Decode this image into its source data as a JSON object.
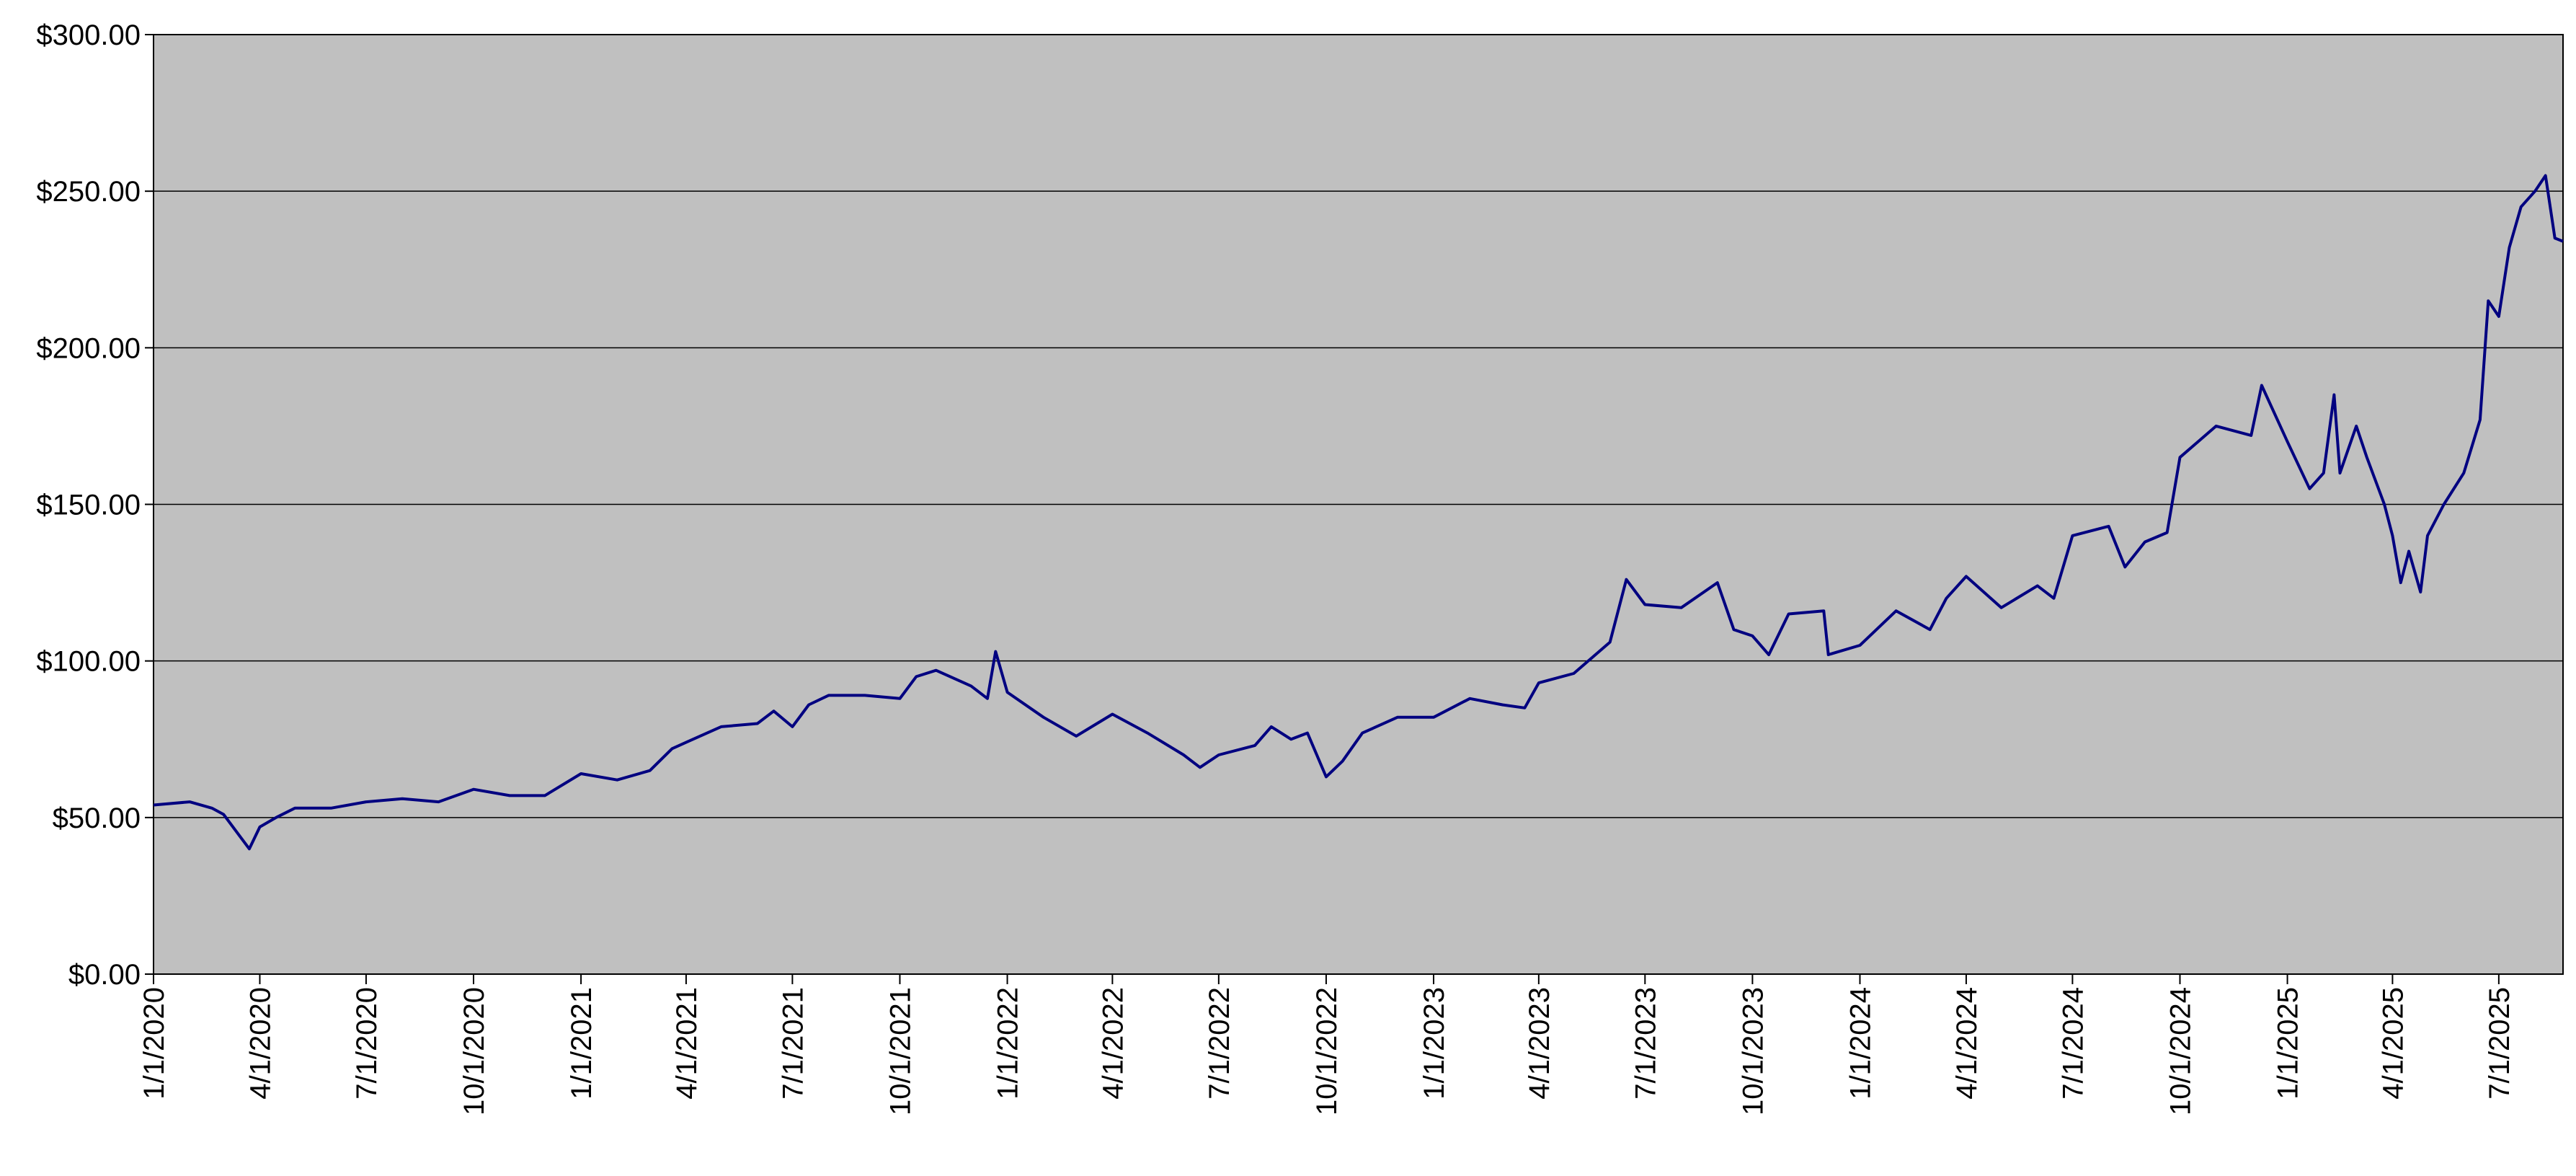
{
  "chart_data": {
    "type": "line",
    "color": "#000080",
    "background": "#c0c0c0",
    "grid": true,
    "x": [
      "2020-01-01",
      "2020-02-01",
      "2020-02-20",
      "2020-03-01",
      "2020-03-15",
      "2020-03-23",
      "2020-04-01",
      "2020-04-15",
      "2020-05-01",
      "2020-06-01",
      "2020-07-01",
      "2020-08-01",
      "2020-09-01",
      "2020-10-01",
      "2020-11-01",
      "2020-12-01",
      "2021-01-01",
      "2021-02-01",
      "2021-03-01",
      "2021-03-20",
      "2021-04-01",
      "2021-05-01",
      "2021-06-01",
      "2021-06-15",
      "2021-07-01",
      "2021-07-15",
      "2021-08-01",
      "2021-09-01",
      "2021-10-01",
      "2021-10-15",
      "2021-11-01",
      "2021-12-01",
      "2021-12-15",
      "2021-12-22",
      "2022-01-01",
      "2022-02-01",
      "2022-03-01",
      "2022-04-01",
      "2022-05-01",
      "2022-06-01",
      "2022-06-15",
      "2022-07-01",
      "2022-08-01",
      "2022-08-15",
      "2022-09-01",
      "2022-09-15",
      "2022-10-01",
      "2022-10-15",
      "2022-11-01",
      "2022-12-01",
      "2023-01-01",
      "2023-02-01",
      "2023-03-01",
      "2023-03-20",
      "2023-04-01",
      "2023-05-01",
      "2023-06-01",
      "2023-06-15",
      "2023-07-01",
      "2023-08-01",
      "2023-09-01",
      "2023-09-15",
      "2023-10-01",
      "2023-10-15",
      "2023-11-01",
      "2023-12-01",
      "2023-12-05",
      "2024-01-01",
      "2024-02-01",
      "2024-03-01",
      "2024-03-15",
      "2024-04-01",
      "2024-05-01",
      "2024-06-01",
      "2024-06-15",
      "2024-07-01",
      "2024-08-01",
      "2024-08-15",
      "2024-09-01",
      "2024-09-20",
      "2024-10-01",
      "2024-11-01",
      "2024-12-01",
      "2024-12-10",
      "2025-01-01",
      "2025-01-20",
      "2025-02-01",
      "2025-02-10",
      "2025-02-15",
      "2025-03-01",
      "2025-03-10",
      "2025-03-25",
      "2025-04-01",
      "2025-04-08",
      "2025-04-15",
      "2025-04-25",
      "2025-05-01",
      "2025-05-15",
      "2025-06-01",
      "2025-06-15",
      "2025-06-22",
      "2025-07-01",
      "2025-07-10",
      "2025-07-20",
      "2025-08-01",
      "2025-08-10",
      "2025-08-18",
      "2025-08-25"
    ],
    "values": [
      54,
      55,
      53,
      51,
      44,
      40,
      47,
      50,
      53,
      53,
      55,
      56,
      55,
      59,
      57,
      57,
      64,
      62,
      65,
      72,
      74,
      79,
      80,
      84,
      79,
      86,
      89,
      89,
      88,
      95,
      97,
      92,
      88,
      103,
      90,
      82,
      76,
      83,
      77,
      70,
      66,
      70,
      73,
      79,
      75,
      77,
      63,
      68,
      77,
      82,
      82,
      88,
      86,
      85,
      93,
      96,
      106,
      126,
      118,
      117,
      125,
      110,
      108,
      102,
      115,
      116,
      102,
      105,
      116,
      110,
      120,
      127,
      117,
      124,
      120,
      140,
      143,
      130,
      138,
      141,
      165,
      175,
      172,
      188,
      170,
      155,
      160,
      185,
      160,
      175,
      165,
      150,
      140,
      125,
      135,
      122,
      140,
      150,
      160,
      177,
      215,
      210,
      232,
      245,
      250,
      255,
      235,
      234
    ],
    "xlim": [
      "2020-01-01",
      "2025-08-25"
    ],
    "xticks": [
      {
        "value": "2020-01-01",
        "label": "1/1/2020"
      },
      {
        "value": "2020-04-01",
        "label": "4/1/2020"
      },
      {
        "value": "2020-07-01",
        "label": "7/1/2020"
      },
      {
        "value": "2020-10-01",
        "label": "10/1/2020"
      },
      {
        "value": "2021-01-01",
        "label": "1/1/2021"
      },
      {
        "value": "2021-04-01",
        "label": "4/1/2021"
      },
      {
        "value": "2021-07-01",
        "label": "7/1/2021"
      },
      {
        "value": "2021-10-01",
        "label": "10/1/2021"
      },
      {
        "value": "2022-01-01",
        "label": "1/1/2022"
      },
      {
        "value": "2022-04-01",
        "label": "4/1/2022"
      },
      {
        "value": "2022-07-01",
        "label": "7/1/2022"
      },
      {
        "value": "2022-10-01",
        "label": "10/1/2022"
      },
      {
        "value": "2023-01-01",
        "label": "1/1/2023"
      },
      {
        "value": "2023-04-01",
        "label": "4/1/2023"
      },
      {
        "value": "2023-07-01",
        "label": "7/1/2023"
      },
      {
        "value": "2023-10-01",
        "label": "10/1/2023"
      },
      {
        "value": "2024-01-01",
        "label": "1/1/2024"
      },
      {
        "value": "2024-04-01",
        "label": "4/1/2024"
      },
      {
        "value": "2024-07-01",
        "label": "7/1/2024"
      },
      {
        "value": "2024-10-01",
        "label": "10/1/2024"
      },
      {
        "value": "2025-01-01",
        "label": "1/1/2025"
      },
      {
        "value": "2025-04-01",
        "label": "4/1/2025"
      },
      {
        "value": "2025-07-01",
        "label": "7/1/2025"
      }
    ],
    "ylim": [
      0,
      300
    ],
    "yticks": [
      {
        "value": 0,
        "label": "$0.00"
      },
      {
        "value": 50,
        "label": "$50.00"
      },
      {
        "value": 100,
        "label": "$100.00"
      },
      {
        "value": 150,
        "label": "$150.00"
      },
      {
        "value": 200,
        "label": "$200.00"
      },
      {
        "value": 250,
        "label": "$250.00"
      },
      {
        "value": 300,
        "label": "$300.00"
      }
    ]
  }
}
